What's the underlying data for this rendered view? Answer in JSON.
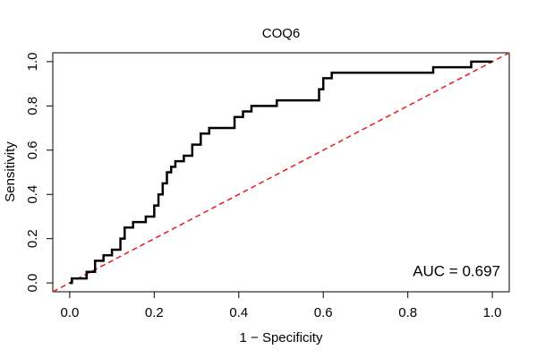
{
  "chart_data": {
    "type": "line",
    "title": "COQ6",
    "xlabel": "1 − Specificity",
    "ylabel": "Sensitivity",
    "xlim": [
      -0.04,
      1.04
    ],
    "ylim": [
      -0.04,
      1.04
    ],
    "xticks": [
      {
        "value": 0,
        "label": "0.0"
      },
      0.2,
      0.4,
      0.6,
      0.8,
      {
        "value": 1,
        "label": "1.0"
      }
    ],
    "yticks": [
      {
        "value": 0,
        "label": "0.0"
      },
      0.2,
      0.4,
      0.6,
      0.8,
      {
        "value": 1,
        "label": "1.0"
      }
    ],
    "annotation": "AUC = 0.697",
    "abline": {
      "intercept": 0,
      "slope": 1,
      "color": "#e8191c"
    },
    "series": [
      {
        "color": "#000000",
        "x": [
          0,
          0.005,
          0.005,
          0.04,
          0.04,
          0.06,
          0.06,
          0.08,
          0.08,
          0.1,
          0.1,
          0.12,
          0.12,
          0.13,
          0.13,
          0.15,
          0.15,
          0.18,
          0.18,
          0.2,
          0.2,
          0.21,
          0.21,
          0.22,
          0.22,
          0.23,
          0.23,
          0.24,
          0.24,
          0.25,
          0.25,
          0.27,
          0.27,
          0.29,
          0.29,
          0.31,
          0.31,
          0.33,
          0.33,
          0.39,
          0.39,
          0.41,
          0.41,
          0.43,
          0.43,
          0.49,
          0.49,
          0.59,
          0.59,
          0.6,
          0.6,
          0.62,
          0.62,
          0.86,
          0.86,
          0.95,
          0.95,
          1.0
        ],
        "values": [
          0,
          0,
          0.02,
          0.02,
          0.05,
          0.05,
          0.1,
          0.1,
          0.125,
          0.125,
          0.15,
          0.15,
          0.2,
          0.2,
          0.25,
          0.25,
          0.275,
          0.275,
          0.3,
          0.3,
          0.35,
          0.35,
          0.4,
          0.4,
          0.45,
          0.45,
          0.5,
          0.5,
          0.525,
          0.525,
          0.55,
          0.55,
          0.575,
          0.575,
          0.625,
          0.625,
          0.675,
          0.675,
          0.7,
          0.7,
          0.75,
          0.75,
          0.775,
          0.775,
          0.8,
          0.8,
          0.825,
          0.825,
          0.875,
          0.875,
          0.925,
          0.925,
          0.95,
          0.95,
          0.975,
          0.975,
          1.0,
          1.0
        ]
      }
    ]
  }
}
